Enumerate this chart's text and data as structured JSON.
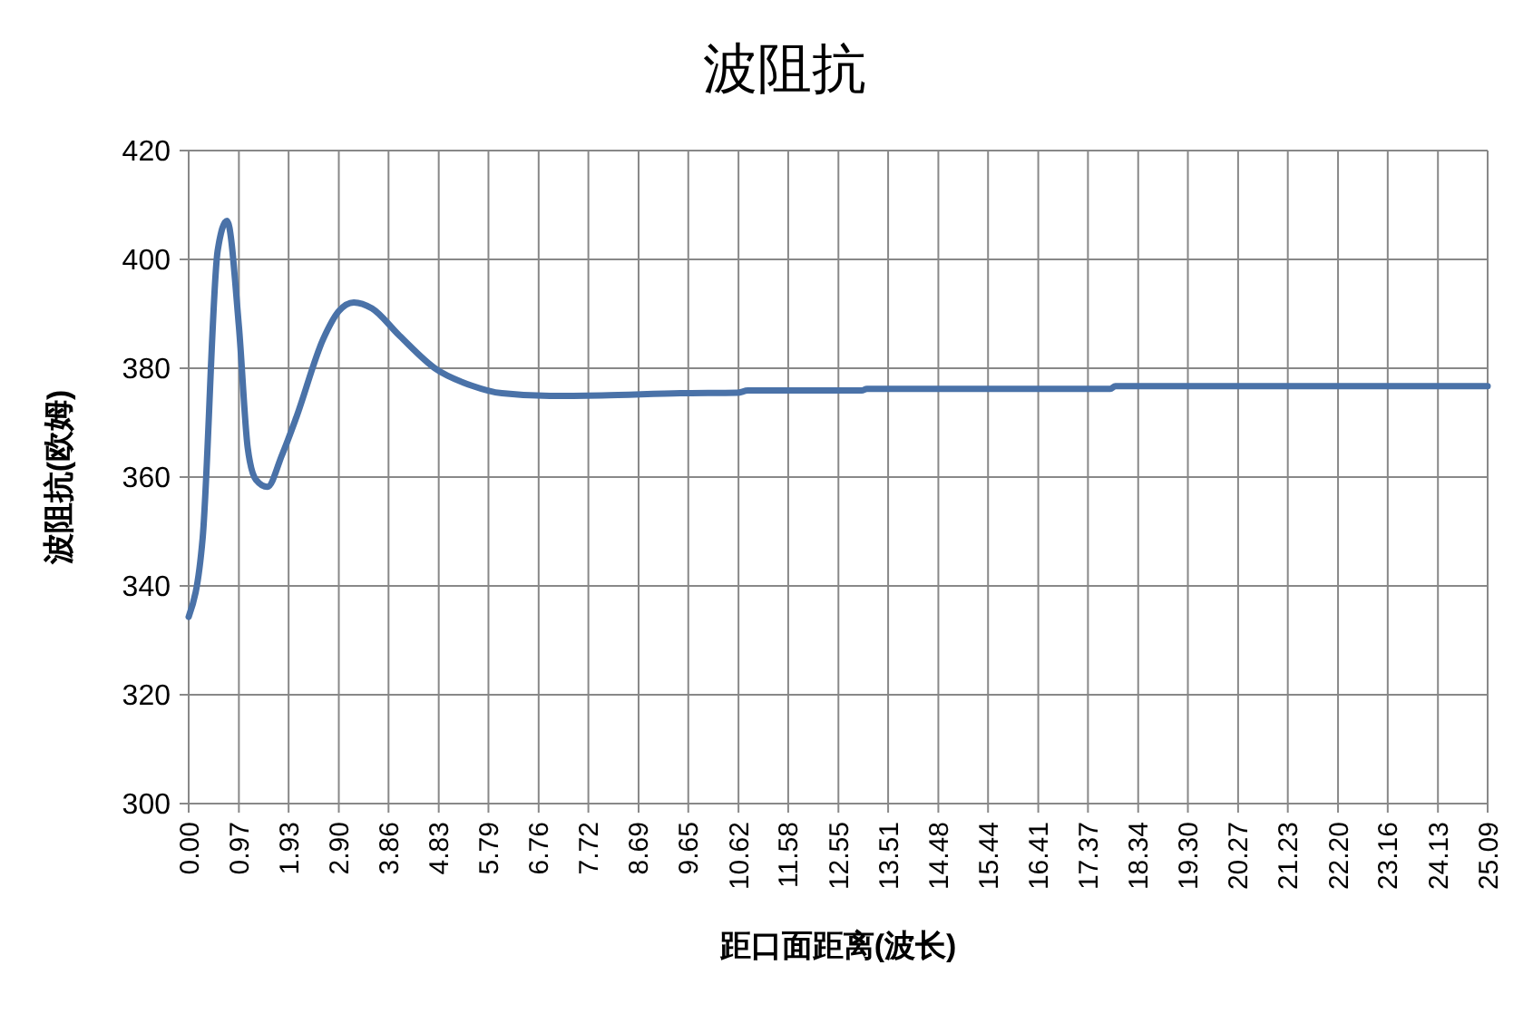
{
  "chart_data": {
    "type": "line",
    "title": "波阻抗",
    "xlabel": "距口面距离(波长)",
    "ylabel": "波阻抗(欧姆)",
    "xlim": [
      0,
      25.09
    ],
    "xticks": [
      {
        "value": 0,
        "label": "0.00"
      },
      0.97,
      1.93,
      {
        "value": 2.9,
        "label": "2.90"
      },
      3.86,
      4.83,
      5.79,
      6.76,
      7.72,
      8.69,
      9.65,
      10.62,
      11.58,
      12.55,
      13.51,
      14.48,
      15.44,
      16.41,
      17.37,
      18.34,
      {
        "value": 19.3,
        "label": "19.30"
      },
      20.27,
      21.23,
      {
        "value": 22.2,
        "label": "22.20"
      },
      23.16,
      24.13,
      25.09
    ],
    "ylim": [
      300,
      420
    ],
    "yticks": [
      300,
      320,
      340,
      360,
      380,
      400,
      420
    ],
    "grid": true,
    "marker": "none",
    "line_style": "solid",
    "series": [
      {
        "color": "#4a72a8",
        "x": [
          0,
          0.27,
          0.56,
          0.74,
          0.97,
          1.14,
          1.3,
          1.52,
          1.8,
          2.08,
          2.6,
          2.9,
          3.19,
          3.54,
          4.07,
          4.77,
          5.47,
          6.05,
          6.98,
          7.98,
          9.5,
          10.6,
          10.8,
          13.0,
          13.1,
          17.8,
          17.9,
          25.09
        ],
        "values": [
          334.3,
          348.8,
          401.6,
          407.1,
          387.7,
          365.4,
          359.5,
          358.2,
          364,
          371,
          385.4,
          390.5,
          392.1,
          391,
          386,
          379.9,
          376.8,
          375.4,
          374.9,
          375,
          375.4,
          375.5,
          375.9,
          375.9,
          376.2,
          376.2,
          376.7,
          376.7
        ]
      }
    ]
  }
}
